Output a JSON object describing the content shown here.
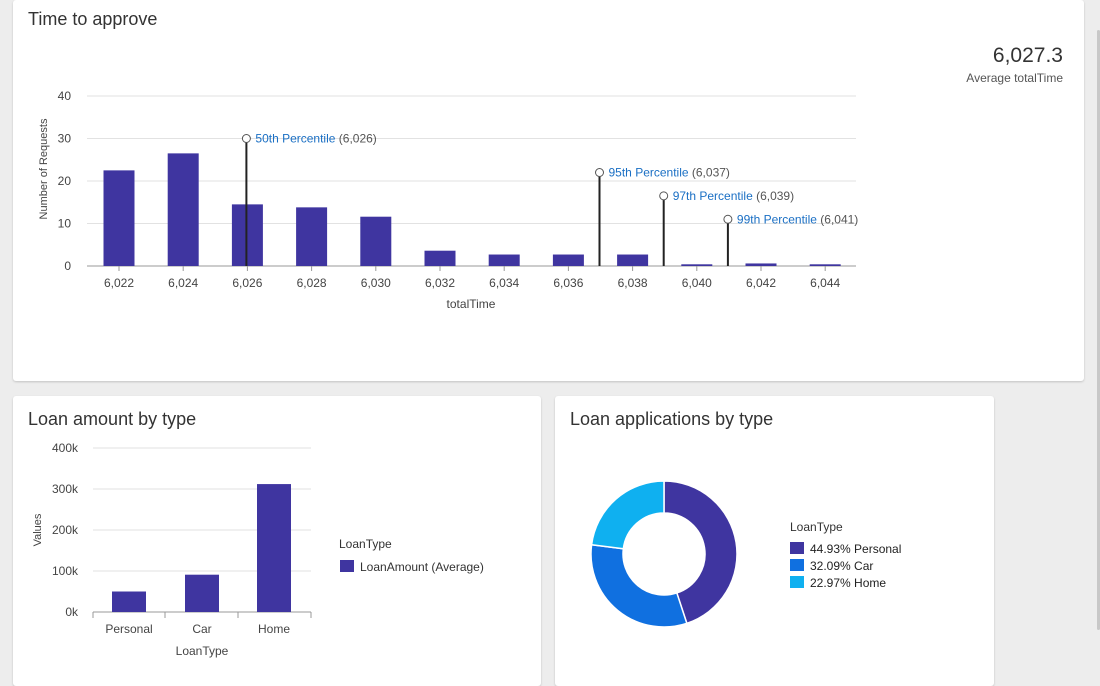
{
  "time_to_approve": {
    "title": "Time to approve",
    "kpi_value": "6,027.3",
    "kpi_label": "Average totalTime",
    "ylabel": "Number of Requests",
    "xlabel": "totalTime",
    "yticks": [
      "0",
      "10",
      "20",
      "30",
      "40"
    ],
    "xticks": [
      "6,022",
      "6,024",
      "6,026",
      "6,028",
      "6,030",
      "6,032",
      "6,034",
      "6,036",
      "6,038",
      "6,040",
      "6,042",
      "6,044"
    ],
    "percentiles": [
      {
        "label": "50th Percentile",
        "value": "(6,026)"
      },
      {
        "label": "95th Percentile",
        "value": "(6,037)"
      },
      {
        "label": "97th Percentile",
        "value": "(6,039)"
      },
      {
        "label": "99th Percentile",
        "value": "(6,041)"
      }
    ]
  },
  "loan_amount": {
    "title": "Loan amount by type",
    "ylabel": "Values",
    "xlabel": "LoanType",
    "yticks": [
      "0k",
      "100k",
      "200k",
      "300k",
      "400k"
    ],
    "categories": [
      "Personal",
      "Car",
      "Home"
    ],
    "legend_title": "LoanType",
    "legend_item": "LoanAmount (Average)"
  },
  "loan_apps": {
    "title": "Loan applications by type",
    "legend_title": "LoanType",
    "legend_items": [
      "44.93% Personal",
      "32.09% Car",
      "22.97% Home"
    ]
  },
  "colors": {
    "bar": "#3f35a0",
    "personal": "#3f35a0",
    "car": "#1070e0",
    "home": "#0fb0f0",
    "percentile_link": "#1a6fc4"
  },
  "chart_data": [
    {
      "type": "bar",
      "title": "Time to approve",
      "xlabel": "totalTime",
      "ylabel": "Number of Requests",
      "x": [
        6022,
        6024,
        6026,
        6028,
        6030,
        6032,
        6034,
        6036,
        6038,
        6040,
        6042,
        6044
      ],
      "values": [
        22.5,
        26.5,
        14.5,
        13.8,
        11.6,
        3.6,
        2.7,
        2.7,
        2.7,
        0.4,
        0.6,
        0.4
      ],
      "ylim": [
        0,
        40
      ],
      "grid": true,
      "percentile_markers": [
        {
          "name": "50th Percentile",
          "x": 6026,
          "y": 30
        },
        {
          "name": "95th Percentile",
          "x": 6037,
          "y": 22
        },
        {
          "name": "97th Percentile",
          "x": 6039,
          "y": 16.5
        },
        {
          "name": "99th Percentile",
          "x": 6041,
          "y": 11
        }
      ]
    },
    {
      "type": "bar",
      "title": "Loan amount by type",
      "xlabel": "LoanType",
      "ylabel": "Values",
      "categories": [
        "Personal",
        "Car",
        "Home"
      ],
      "series": [
        {
          "name": "LoanAmount (Average)",
          "values": [
            50000,
            91000,
            312000
          ]
        }
      ],
      "ylim": [
        0,
        400000
      ],
      "grid": true,
      "legend": "right"
    },
    {
      "type": "pie",
      "title": "Loan applications by type",
      "categories": [
        "Personal",
        "Car",
        "Home"
      ],
      "values": [
        44.93,
        32.09,
        22.97
      ],
      "legend": "right"
    }
  ]
}
